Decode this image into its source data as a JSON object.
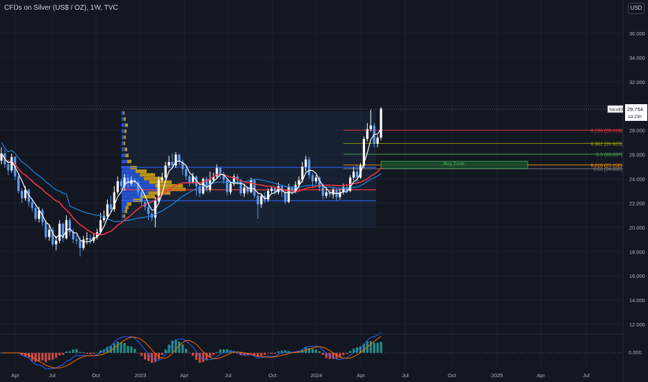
{
  "header": {
    "title": "CFDs on Silver (US$ / OZ), 1W, TVC"
  },
  "currency_button": "USD",
  "price_axis": {
    "ticks": [
      "36.000",
      "34.000",
      "32.000",
      "30.000",
      "28.000",
      "26.000",
      "24.000",
      "22.000",
      "20.000",
      "18.000",
      "16.000",
      "14.000",
      "12.000"
    ],
    "min": 10.6,
    "max": 38.7
  },
  "time_axis": {
    "ticks": [
      "Apr",
      "Jul",
      "Oct",
      "2023",
      "Apr",
      "Jul",
      "Oct",
      "2024",
      "Apr",
      "Jul",
      "Oct",
      "2025",
      "Apr",
      "Jul"
    ]
  },
  "price_label": {
    "symbol": "SILVER",
    "price": "29.754",
    "countdown": "1d 23h",
    "value": 29.754
  },
  "fib_levels": [
    {
      "label": "0.236 (28.019)",
      "value": 28.019,
      "color": "#f23645"
    },
    {
      "label": "0.382 (26.923)",
      "value": 26.923,
      "color": "#a8b300"
    },
    {
      "label": "0.5 (26.037)",
      "value": 26.037,
      "color": "#4caf50"
    },
    {
      "label": "0.618 (25.150)",
      "value": 25.15,
      "color": "#ff9800"
    },
    {
      "label": "0.66 (24.835)",
      "value": 24.835,
      "color": "#888888"
    }
  ],
  "buy_zone": {
    "label": "Buy Zone",
    "top": 25.45,
    "bottom": 24.85
  },
  "range_box": {
    "top": 24.95,
    "mid": 23.1,
    "bottom": 22.2
  },
  "indicator_pane": {
    "zero_label": "0.000"
  },
  "colors": {
    "up": "#ffffff",
    "down": "#5b9cf6",
    "ema_red": "#f23645",
    "ema_blue": "#1e88e5",
    "ma_white": "#ffffff",
    "volume_profile": "#f0b90b"
  }
}
